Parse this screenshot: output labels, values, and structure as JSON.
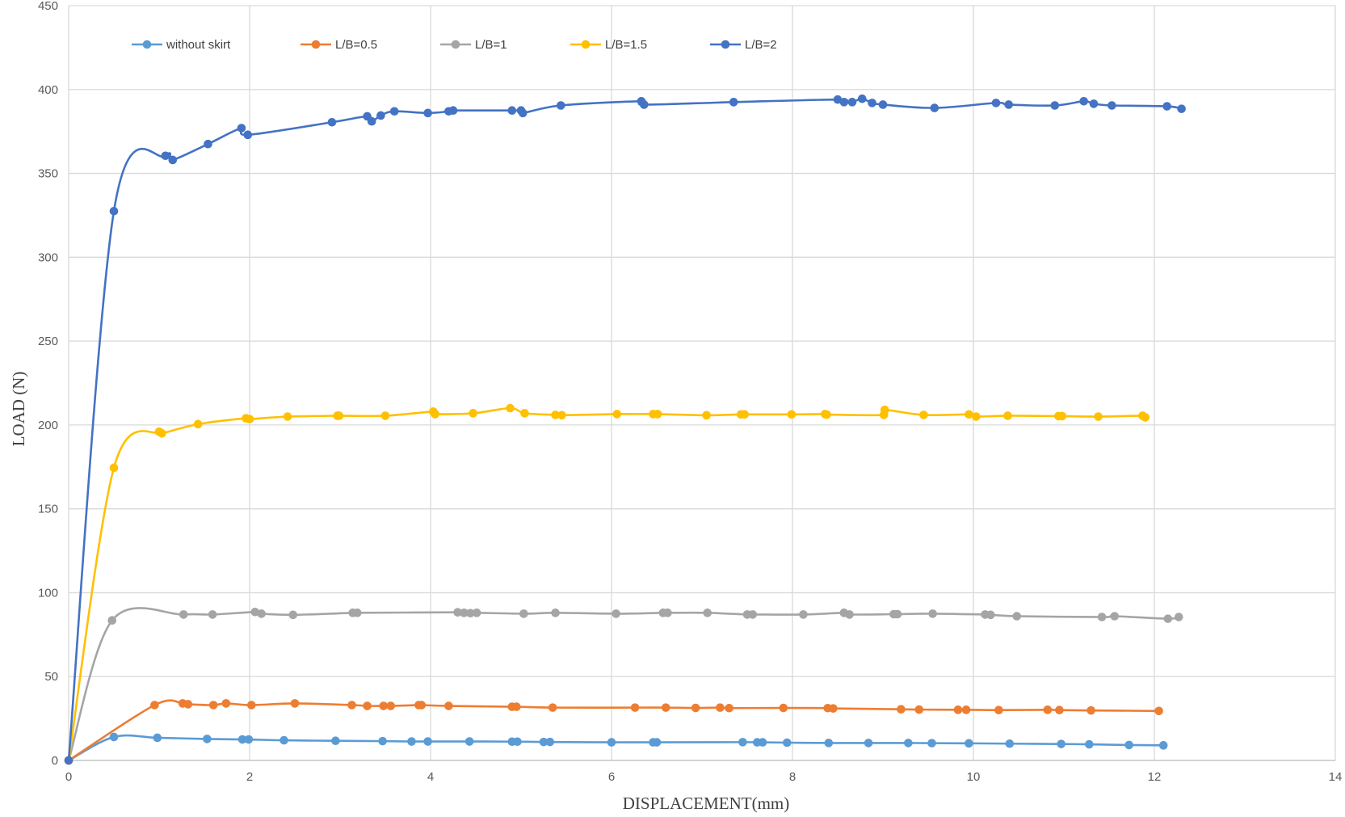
{
  "chart_data": {
    "type": "line",
    "title": "",
    "xlabel": "DISPLACEMENT(mm)",
    "ylabel": "LOAD (N)",
    "xlim": [
      0,
      14
    ],
    "ylim": [
      0,
      450
    ],
    "xticks": [
      0,
      2,
      4,
      6,
      8,
      10,
      12,
      14
    ],
    "yticks": [
      0,
      50,
      100,
      150,
      200,
      250,
      300,
      350,
      400,
      450
    ],
    "xtick_labels": [
      "0",
      "2",
      "4",
      "6",
      "8",
      "10",
      "12",
      "14"
    ],
    "ytick_labels": [
      "0",
      "50",
      "100",
      "150",
      "200",
      "250",
      "300",
      "350",
      "400",
      "450"
    ],
    "grid": true,
    "legend": "top-left",
    "smooth": true,
    "series": [
      {
        "name": "without skirt",
        "color": "#5B9BD5",
        "points": [
          [
            0,
            0
          ],
          [
            0.5,
            14
          ],
          [
            0.98,
            13.5
          ],
          [
            1.53,
            12.8
          ],
          [
            1.92,
            12.5
          ],
          [
            1.99,
            12.5
          ],
          [
            2.38,
            12
          ],
          [
            2.95,
            11.7
          ],
          [
            3.47,
            11.5
          ],
          [
            3.79,
            11.3
          ],
          [
            3.97,
            11.3
          ],
          [
            4.43,
            11.3
          ],
          [
            4.9,
            11.2
          ],
          [
            4.96,
            11.2
          ],
          [
            5.25,
            11
          ],
          [
            5.32,
            11
          ],
          [
            6,
            10.8
          ],
          [
            6.46,
            10.8
          ],
          [
            6.5,
            10.8
          ],
          [
            7.45,
            10.9
          ],
          [
            7.61,
            10.8
          ],
          [
            7.67,
            10.8
          ],
          [
            7.94,
            10.6
          ],
          [
            8.4,
            10.4
          ],
          [
            8.84,
            10.4
          ],
          [
            9.28,
            10.4
          ],
          [
            9.54,
            10.3
          ],
          [
            9.95,
            10.2
          ],
          [
            10.4,
            10
          ],
          [
            10.97,
            9.8
          ],
          [
            11.28,
            9.6
          ],
          [
            11.72,
            9.2
          ],
          [
            12.1,
            9
          ]
        ]
      },
      {
        "name": "L/B=0.5",
        "color": "#ED7D31",
        "points": [
          [
            0,
            0
          ],
          [
            0.95,
            33
          ],
          [
            1.26,
            34
          ],
          [
            1.32,
            33.5
          ],
          [
            1.6,
            33
          ],
          [
            1.74,
            34
          ],
          [
            2.02,
            33
          ],
          [
            2.5,
            34
          ],
          [
            3.13,
            33
          ],
          [
            3.3,
            32.5
          ],
          [
            3.48,
            32.5
          ],
          [
            3.56,
            32.5
          ],
          [
            3.87,
            33
          ],
          [
            3.9,
            33
          ],
          [
            4.2,
            32.5
          ],
          [
            4.9,
            32
          ],
          [
            4.95,
            32
          ],
          [
            5.35,
            31.5
          ],
          [
            6.26,
            31.5
          ],
          [
            6.6,
            31.5
          ],
          [
            6.93,
            31.3
          ],
          [
            7.2,
            31.5
          ],
          [
            7.3,
            31.2
          ],
          [
            7.9,
            31.3
          ],
          [
            8.39,
            31.2
          ],
          [
            8.45,
            31
          ],
          [
            9.2,
            30.5
          ],
          [
            9.4,
            30.3
          ],
          [
            9.83,
            30.2
          ],
          [
            9.92,
            30.2
          ],
          [
            10.28,
            30
          ],
          [
            10.82,
            30.2
          ],
          [
            10.95,
            30
          ],
          [
            11.3,
            29.8
          ],
          [
            12.05,
            29.5
          ]
        ]
      },
      {
        "name": "L/B=1",
        "color": "#A5A5A5",
        "points": [
          [
            0,
            0
          ],
          [
            0.48,
            83.5
          ],
          [
            1.27,
            87
          ],
          [
            1.59,
            87
          ],
          [
            2.06,
            88.5
          ],
          [
            2.13,
            87.5
          ],
          [
            2.48,
            86.8
          ],
          [
            3.14,
            88
          ],
          [
            3.19,
            88
          ],
          [
            4.3,
            88.3
          ],
          [
            4.37,
            88
          ],
          [
            4.44,
            87.8
          ],
          [
            4.51,
            88
          ],
          [
            5.03,
            87.5
          ],
          [
            5.38,
            88
          ],
          [
            6.05,
            87.5
          ],
          [
            6.57,
            88
          ],
          [
            6.62,
            88
          ],
          [
            7.06,
            88
          ],
          [
            7.5,
            87
          ],
          [
            7.56,
            87
          ],
          [
            8.12,
            87
          ],
          [
            8.57,
            88
          ],
          [
            8.63,
            87
          ],
          [
            9.12,
            87.2
          ],
          [
            9.16,
            87.2
          ],
          [
            9.55,
            87.5
          ],
          [
            10.13,
            87
          ],
          [
            10.19,
            86.8
          ],
          [
            10.48,
            86
          ],
          [
            11.42,
            85.5
          ],
          [
            11.56,
            86
          ],
          [
            12.15,
            84.5
          ],
          [
            12.27,
            85.5
          ]
        ]
      },
      {
        "name": "L/B=1.5",
        "color": "#FFC000",
        "points": [
          [
            0,
            0
          ],
          [
            0.5,
            174.5
          ],
          [
            1.0,
            196
          ],
          [
            1.03,
            195
          ],
          [
            1.43,
            200.5
          ],
          [
            1.96,
            204
          ],
          [
            2.0,
            203.5
          ],
          [
            2.42,
            205
          ],
          [
            2.97,
            205.5
          ],
          [
            2.99,
            205.5
          ],
          [
            3.5,
            205.5
          ],
          [
            4.03,
            208
          ],
          [
            4.05,
            206.5
          ],
          [
            4.47,
            207
          ],
          [
            4.88,
            210
          ],
          [
            5.04,
            207
          ],
          [
            5.38,
            206
          ],
          [
            5.45,
            205.8
          ],
          [
            6.06,
            206.5
          ],
          [
            6.46,
            206.5
          ],
          [
            6.51,
            206.5
          ],
          [
            7.05,
            205.8
          ],
          [
            7.43,
            206.3
          ],
          [
            7.47,
            206.3
          ],
          [
            7.99,
            206.3
          ],
          [
            8.36,
            206.5
          ],
          [
            8.38,
            206.2
          ],
          [
            9.01,
            206
          ],
          [
            9.02,
            209
          ],
          [
            9.45,
            206
          ],
          [
            9.95,
            206.3
          ],
          [
            10.03,
            205
          ],
          [
            10.38,
            205.5
          ],
          [
            10.94,
            205.3
          ],
          [
            10.98,
            205.3
          ],
          [
            11.38,
            205
          ],
          [
            11.87,
            205.5
          ],
          [
            11.9,
            204.5
          ]
        ]
      },
      {
        "name": "L/B=2",
        "color": "#4472C4",
        "points": [
          [
            0,
            0
          ],
          [
            0.5,
            327.5
          ],
          [
            1.07,
            360.5
          ],
          [
            1.15,
            358
          ],
          [
            1.54,
            367.5
          ],
          [
            1.91,
            377
          ],
          [
            1.98,
            373
          ],
          [
            2.91,
            380.5
          ],
          [
            3.3,
            384
          ],
          [
            3.35,
            381
          ],
          [
            3.45,
            384.5
          ],
          [
            3.6,
            387
          ],
          [
            3.97,
            386
          ],
          [
            4.2,
            387
          ],
          [
            4.25,
            387.5
          ],
          [
            4.9,
            387.5
          ],
          [
            5.0,
            387.5
          ],
          [
            5.02,
            386
          ],
          [
            5.44,
            390.5
          ],
          [
            6.33,
            393
          ],
          [
            6.36,
            391
          ],
          [
            7.35,
            392.5
          ],
          [
            8.5,
            394
          ],
          [
            8.57,
            392.5
          ],
          [
            8.66,
            392.5
          ],
          [
            8.77,
            394.5
          ],
          [
            8.88,
            392
          ],
          [
            9.0,
            391
          ],
          [
            9.57,
            389
          ],
          [
            10.25,
            392
          ],
          [
            10.39,
            391
          ],
          [
            10.9,
            390.5
          ],
          [
            11.22,
            393
          ],
          [
            11.33,
            391.5
          ],
          [
            11.53,
            390.5
          ],
          [
            12.14,
            390
          ],
          [
            12.3,
            388.5
          ]
        ]
      }
    ]
  }
}
